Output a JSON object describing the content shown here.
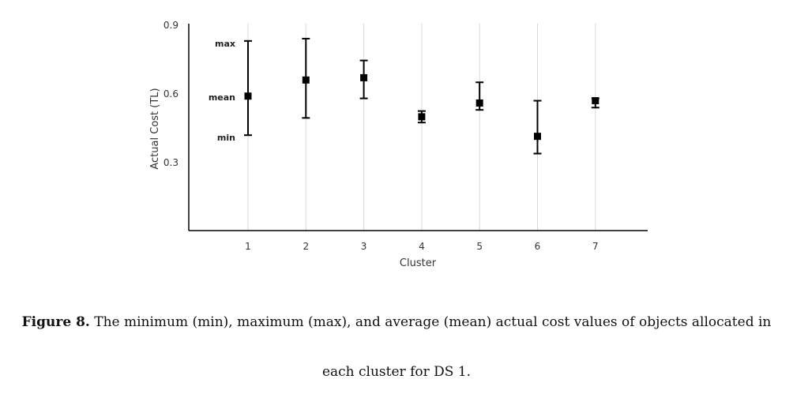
{
  "chart_data": {
    "type": "scatter",
    "title": "",
    "xlabel": "Cluster",
    "ylabel": "Actual Cost (TL)",
    "ylim": [
      0.0,
      0.9
    ],
    "yticks": [
      "0.9",
      "0.6",
      "0.3"
    ],
    "categories": [
      "1",
      "2",
      "3",
      "4",
      "5",
      "6",
      "7"
    ],
    "series": [
      {
        "mean": [
          0.585,
          0.655,
          0.665,
          0.495,
          0.555,
          0.41,
          0.565
        ],
        "min": [
          0.415,
          0.49,
          0.575,
          0.47,
          0.525,
          0.335,
          0.535
        ],
        "max": [
          0.825,
          0.835,
          0.74,
          0.52,
          0.645,
          0.565,
          0.575
        ]
      }
    ],
    "grid": true,
    "annotations": [
      "max",
      "mean",
      "min"
    ]
  },
  "caption": {
    "label": "Figure 8.",
    "line1": "The minimum (min), maximum (max), and average (mean) actual cost values of objects allocated in",
    "line2": "each cluster for DS 1."
  }
}
